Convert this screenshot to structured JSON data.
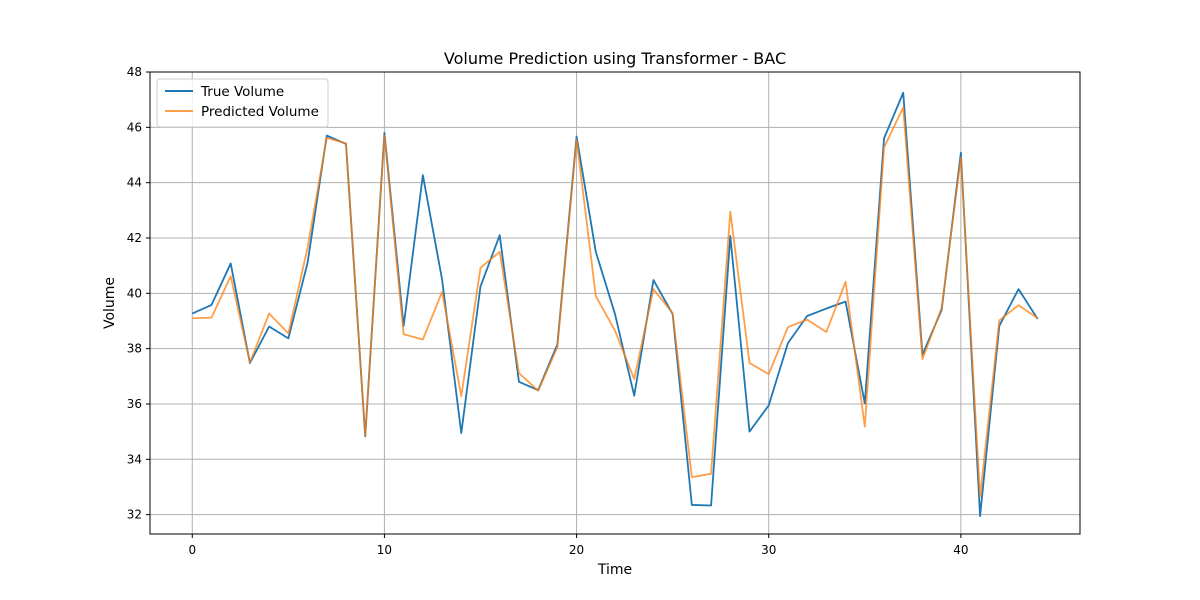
{
  "chart_data": {
    "type": "line",
    "title": "Volume Prediction using Transformer - BAC",
    "xlabel": "Time",
    "ylabel": "Volume",
    "xlim": [
      -2.2,
      46.2
    ],
    "ylim": [
      31.3,
      48.0
    ],
    "xticks": [
      0,
      10,
      20,
      30,
      40
    ],
    "yticks": [
      32,
      34,
      36,
      38,
      40,
      42,
      44,
      46,
      48
    ],
    "grid": true,
    "legend_position": "top-left",
    "x": [
      0,
      1,
      2,
      3,
      4,
      5,
      6,
      7,
      8,
      9,
      10,
      11,
      12,
      13,
      14,
      15,
      16,
      17,
      18,
      19,
      20,
      21,
      22,
      23,
      24,
      25,
      26,
      27,
      28,
      29,
      30,
      31,
      32,
      33,
      34,
      35,
      36,
      37,
      38,
      39,
      40,
      41,
      42,
      43,
      44
    ],
    "series": [
      {
        "name": "True Volume",
        "color": "#1f77b4",
        "values": [
          39.27,
          39.58,
          41.08,
          37.48,
          38.8,
          38.37,
          41.1,
          45.7,
          45.4,
          34.83,
          45.8,
          38.82,
          44.27,
          40.5,
          34.95,
          40.25,
          42.1,
          36.8,
          36.5,
          38.15,
          45.67,
          41.5,
          39.25,
          36.3,
          40.48,
          39.25,
          32.35,
          32.33,
          42.07,
          35.0,
          35.95,
          38.2,
          39.18,
          39.45,
          39.7,
          36.02,
          45.6,
          47.25,
          37.78,
          39.4,
          45.08,
          31.95,
          38.82,
          40.15,
          39.07
        ]
      },
      {
        "name": "Predicted Volume",
        "color": "#ff7f0e",
        "values": [
          39.1,
          39.12,
          40.62,
          37.5,
          39.27,
          38.55,
          41.65,
          45.62,
          45.42,
          34.85,
          45.7,
          38.52,
          38.33,
          40.05,
          36.28,
          40.92,
          41.5,
          37.12,
          36.48,
          38.05,
          45.55,
          39.9,
          38.65,
          36.9,
          40.15,
          39.28,
          33.35,
          33.48,
          42.95,
          37.48,
          37.08,
          38.78,
          39.05,
          38.6,
          40.42,
          35.18,
          45.27,
          46.72,
          37.62,
          39.48,
          44.9,
          32.65,
          39.02,
          39.57,
          39.1
        ]
      }
    ]
  }
}
